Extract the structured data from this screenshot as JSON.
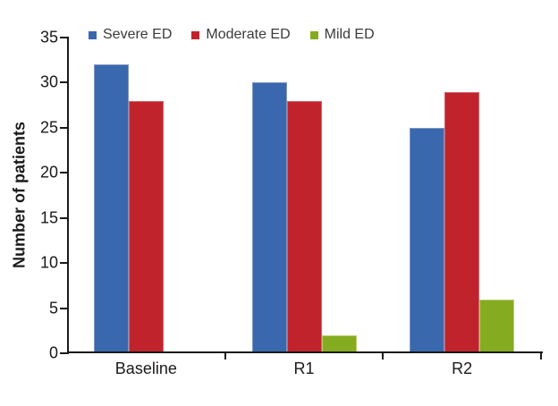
{
  "chart_data": {
    "type": "bar",
    "title": "",
    "ylabel": "Number of patients",
    "xlabel": "",
    "categories": [
      "Baseline",
      "R1",
      "R2"
    ],
    "series": [
      {
        "name": "Severe ED",
        "color": "#3A68AE",
        "border": "#7F97C2",
        "values": [
          32,
          30,
          25
        ]
      },
      {
        "name": "Moderate ED",
        "color": "#C0232C",
        "border": "#D0646A",
        "values": [
          28,
          28,
          29
        ]
      },
      {
        "name": "Mild ED",
        "color": "#85AC20",
        "border": "#BCCB6E",
        "values": [
          0,
          2,
          6
        ]
      }
    ],
    "ylim": [
      0,
      35
    ],
    "yticks": [
      0,
      5,
      10,
      15,
      20,
      25,
      30,
      35
    ],
    "grid": "off",
    "legend_position": "top-inside",
    "axis_color": "#1a1a1a",
    "background_color": "#ffffff"
  }
}
